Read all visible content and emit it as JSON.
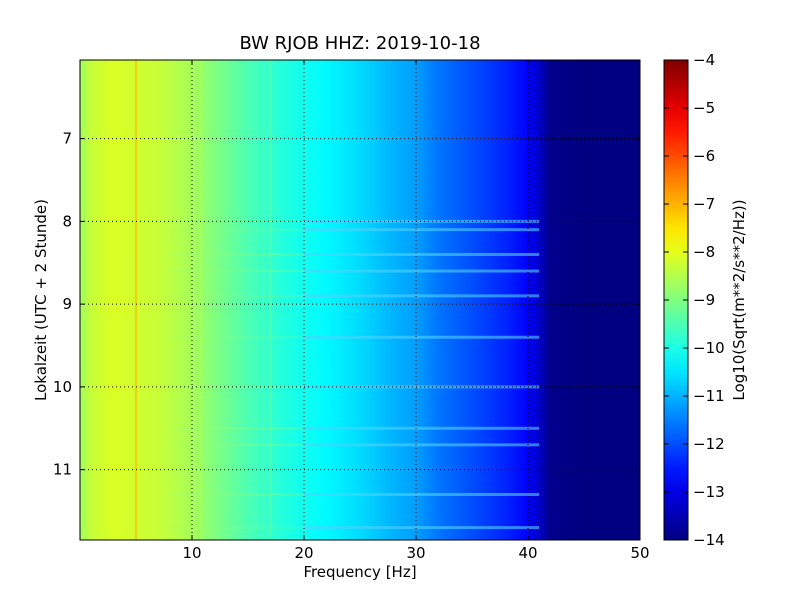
{
  "chart_data": {
    "type": "heatmap",
    "title": "BW RJOB HHZ: 2019-10-18",
    "xlabel": "Frequency [Hz]",
    "ylabel": "Lokalzeit (UTC + 2 Stunde)",
    "colorbar_label": "Log10(Sqrt(m**2/s**2/Hz))",
    "colormap": "jet",
    "xlim": [
      0,
      50
    ],
    "ylim": [
      6.05,
      11.85
    ],
    "y_inverted": true,
    "x_ticks": [
      10,
      20,
      30,
      40,
      50
    ],
    "x_tick_labels": [
      "10",
      "20",
      "30",
      "40",
      "50"
    ],
    "y_ticks": [
      7,
      8,
      9,
      10,
      11
    ],
    "y_tick_labels": [
      "7",
      "8",
      "9",
      "10",
      "11"
    ],
    "color_range": [
      -14,
      -4
    ],
    "colorbar_ticks": [
      -4,
      -5,
      -6,
      -7,
      -8,
      -9,
      -10,
      -11,
      -12,
      -13,
      -14
    ],
    "colorbar_tick_labels": [
      "−4",
      "−5",
      "−6",
      "−7",
      "−8",
      "−9",
      "−10",
      "−11",
      "−12",
      "−13",
      "−14"
    ],
    "grid": "dotted",
    "spectral_profile": {
      "frequency_hz": [
        0,
        1,
        3,
        5,
        7,
        10,
        12,
        15,
        18,
        20,
        22,
        25,
        28,
        30,
        32,
        35,
        38,
        40,
        41,
        42,
        45,
        50
      ],
      "log10_amplitude": [
        -8.7,
        -8.3,
        -8.1,
        -8.2,
        -8.3,
        -8.6,
        -9.0,
        -9.5,
        -9.9,
        -10.1,
        -10.3,
        -10.6,
        -11.0,
        -11.2,
        -11.6,
        -12.0,
        -12.4,
        -12.8,
        -13.3,
        -13.9,
        -14.0,
        -14.0
      ]
    },
    "line_features": [
      {
        "frequency_hz": 5.0,
        "log10_amplitude": -7.0
      },
      {
        "frequency_hz": 10.8,
        "log10_amplitude": -8.5
      },
      {
        "frequency_hz": 17.0,
        "log10_amplitude": -9.3
      }
    ],
    "event_bands_hours": [
      8.0,
      8.1,
      8.4,
      8.6,
      8.9,
      9.4,
      10.0,
      10.5,
      10.7,
      11.3,
      11.7
    ]
  }
}
